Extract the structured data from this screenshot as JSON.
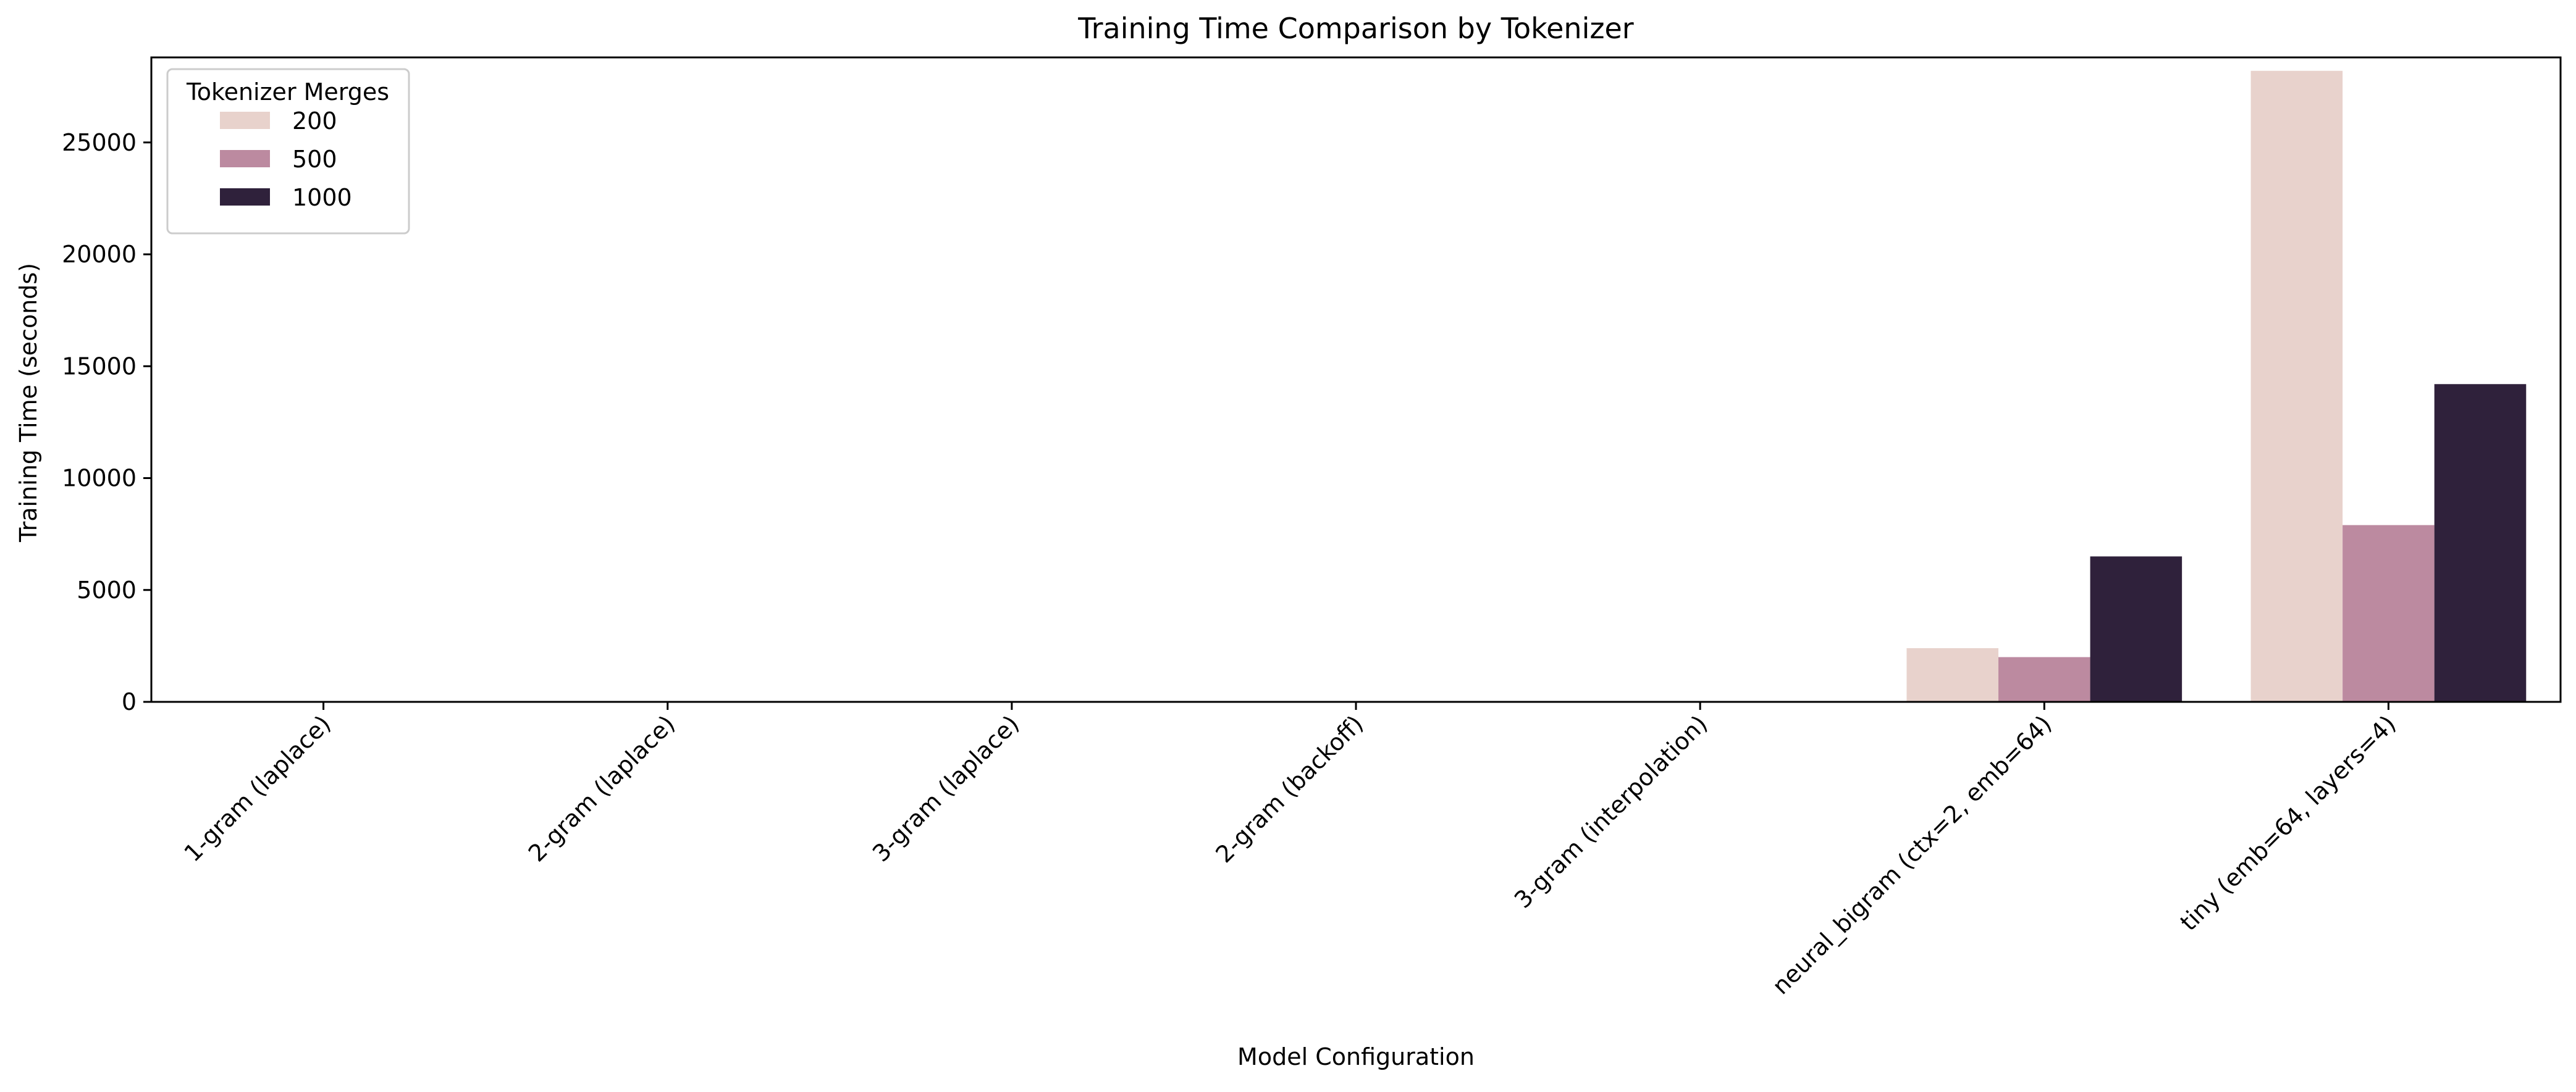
{
  "chart_data": {
    "type": "bar",
    "title": "Training Time Comparison by Tokenizer",
    "xlabel": "Model Configuration",
    "ylabel": "Training Time (seconds)",
    "categories": [
      "1-gram (laplace)",
      "2-gram (laplace)",
      "3-gram (laplace)",
      "2-gram (backoff)",
      "3-gram (interpolation)",
      "neural_bigram (ctx=2, emb=64)",
      "tiny (emb=64, layers=4)"
    ],
    "series": [
      {
        "name": "200",
        "color": "#e8d2cc",
        "values": [
          0,
          0,
          0,
          0,
          0,
          2400,
          28200
        ]
      },
      {
        "name": "500",
        "color": "#bc8aa0",
        "values": [
          0,
          0,
          0,
          0,
          0,
          2000,
          7900
        ]
      },
      {
        "name": "1000",
        "color": "#2f213b",
        "values": [
          0,
          0,
          0,
          0,
          0,
          6500,
          14200
        ]
      }
    ],
    "ylim": [
      0,
      28800
    ],
    "yticks": [
      0,
      5000,
      10000,
      15000,
      20000,
      25000
    ],
    "grid": false,
    "legend": {
      "title": "Tokenizer Merges",
      "placement": "top-left"
    }
  }
}
